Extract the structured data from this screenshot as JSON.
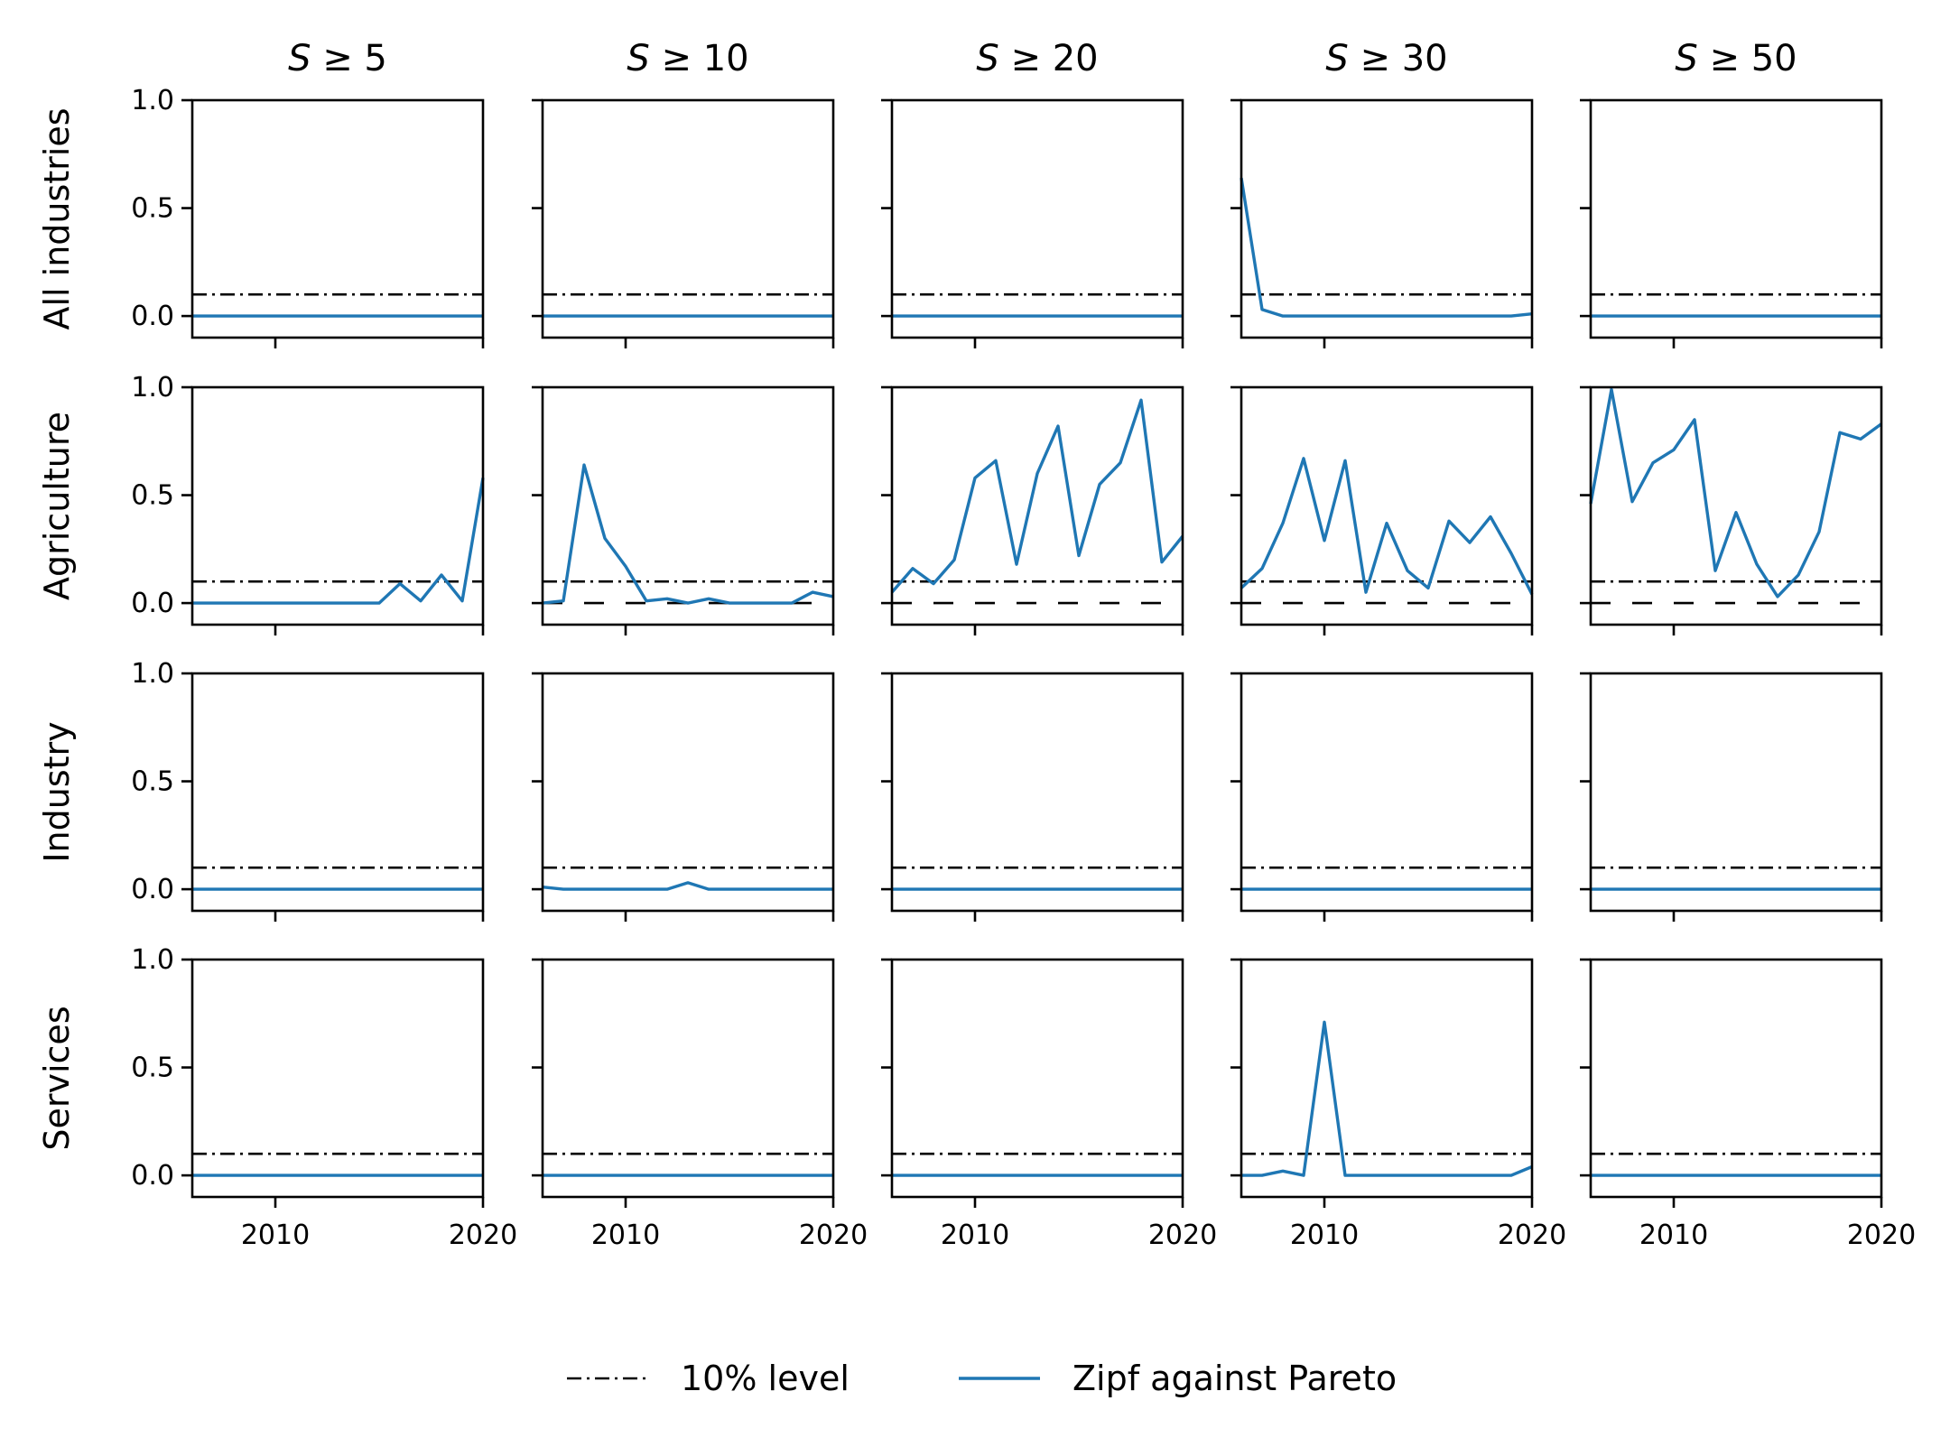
{
  "chart_data": {
    "type": "line",
    "layout": "grid",
    "columns": [
      "S ≥ 5",
      "S ≥ 10",
      "S ≥ 20",
      "S ≥ 30",
      "S ≥ 50"
    ],
    "column_prefix": "S",
    "column_thresholds": [
      "5",
      "10",
      "20",
      "30",
      "50"
    ],
    "rows": [
      "All industries",
      "Agriculture",
      "Industry",
      "Services"
    ],
    "x": [
      2006,
      2007,
      2008,
      2009,
      2010,
      2011,
      2012,
      2013,
      2014,
      2015,
      2016,
      2017,
      2018,
      2019,
      2020
    ],
    "xlim": [
      2006,
      2020
    ],
    "ylim": [
      -0.1,
      1.0
    ],
    "xticks": [
      "2010",
      "2020"
    ],
    "yticks": [
      "0.0",
      "0.5",
      "1.0"
    ],
    "reference_level": 0.1,
    "colors": {
      "series": "#1f77b4",
      "reference": "#000000",
      "axes": "#000000"
    },
    "legend": {
      "position": "bottom-center",
      "entries": [
        {
          "label": "10% level",
          "style": "dash-dot",
          "color": "#000000"
        },
        {
          "label": "Zipf against Pareto",
          "style": "solid",
          "color": "#1f77b4"
        }
      ]
    },
    "panels": [
      [
        {
          "values": [
            0,
            0,
            0,
            0,
            0,
            0,
            0,
            0,
            0,
            0,
            0,
            0,
            0,
            0,
            0
          ]
        },
        {
          "values": [
            0,
            0,
            0,
            0,
            0,
            0,
            0,
            0,
            0,
            0,
            0,
            0,
            0,
            0,
            0
          ]
        },
        {
          "values": [
            0,
            0,
            0,
            0,
            0,
            0,
            0,
            0,
            0,
            0,
            0,
            0,
            0,
            0,
            0
          ]
        },
        {
          "values": [
            0.64,
            0.03,
            0.0,
            0.0,
            0.0,
            0.0,
            0.0,
            0.0,
            0.0,
            0.0,
            0.0,
            0.0,
            0.0,
            0.0,
            0.01
          ]
        },
        {
          "values": [
            0,
            0,
            0,
            0,
            0,
            0,
            0,
            0,
            0,
            0,
            0,
            0,
            0,
            0,
            0
          ]
        }
      ],
      [
        {
          "values": [
            0.0,
            0.0,
            0.0,
            0.0,
            0.0,
            0.0,
            0.0,
            0.0,
            0.0,
            0.0,
            0.09,
            0.01,
            0.13,
            0.01,
            0.58
          ]
        },
        {
          "values": [
            0.0,
            0.01,
            0.64,
            0.3,
            0.17,
            0.01,
            0.02,
            0.0,
            0.02,
            0.0,
            0.0,
            0.0,
            0.0,
            0.05,
            0.03
          ]
        },
        {
          "values": [
            0.05,
            0.16,
            0.09,
            0.2,
            0.58,
            0.66,
            0.18,
            0.6,
            0.82,
            0.22,
            0.55,
            0.65,
            0.94,
            0.19,
            0.31
          ]
        },
        {
          "values": [
            0.07,
            0.16,
            0.37,
            0.67,
            0.29,
            0.66,
            0.05,
            0.37,
            0.15,
            0.07,
            0.38,
            0.28,
            0.4,
            0.23,
            0.04
          ]
        },
        {
          "values": [
            0.46,
            0.99,
            0.47,
            0.65,
            0.71,
            0.85,
            0.15,
            0.42,
            0.18,
            0.03,
            0.13,
            0.33,
            0.79,
            0.76,
            0.83
          ]
        }
      ],
      [
        {
          "values": [
            0,
            0,
            0,
            0,
            0,
            0,
            0,
            0,
            0,
            0,
            0,
            0,
            0,
            0,
            0
          ]
        },
        {
          "values": [
            0.01,
            0.0,
            0.0,
            0.0,
            0.0,
            0.0,
            0.0,
            0.03,
            0.0,
            0.0,
            0.0,
            0.0,
            0.0,
            0.0,
            0.0
          ]
        },
        {
          "values": [
            0,
            0,
            0,
            0,
            0,
            0,
            0,
            0,
            0,
            0,
            0,
            0,
            0,
            0,
            0
          ]
        },
        {
          "values": [
            0,
            0,
            0,
            0,
            0,
            0,
            0,
            0,
            0,
            0,
            0,
            0,
            0,
            0,
            0
          ]
        },
        {
          "values": [
            0,
            0,
            0,
            0,
            0,
            0,
            0,
            0,
            0,
            0,
            0,
            0,
            0,
            0,
            0
          ]
        }
      ],
      [
        {
          "values": [
            0,
            0,
            0,
            0,
            0,
            0,
            0,
            0,
            0,
            0,
            0,
            0,
            0,
            0,
            0
          ]
        },
        {
          "values": [
            0,
            0,
            0,
            0,
            0,
            0,
            0,
            0,
            0,
            0,
            0,
            0,
            0,
            0,
            0
          ]
        },
        {
          "values": [
            0,
            0,
            0,
            0,
            0,
            0,
            0,
            0,
            0,
            0,
            0,
            0,
            0,
            0,
            0
          ]
        },
        {
          "values": [
            0.0,
            0.0,
            0.02,
            0.0,
            0.71,
            0.0,
            0.0,
            0.0,
            0.0,
            0.0,
            0.0,
            0.0,
            0.0,
            0.0,
            0.04
          ]
        },
        {
          "values": [
            0,
            0,
            0,
            0,
            0,
            0,
            0,
            0,
            0,
            0,
            0,
            0,
            0,
            0,
            0
          ]
        }
      ]
    ]
  }
}
